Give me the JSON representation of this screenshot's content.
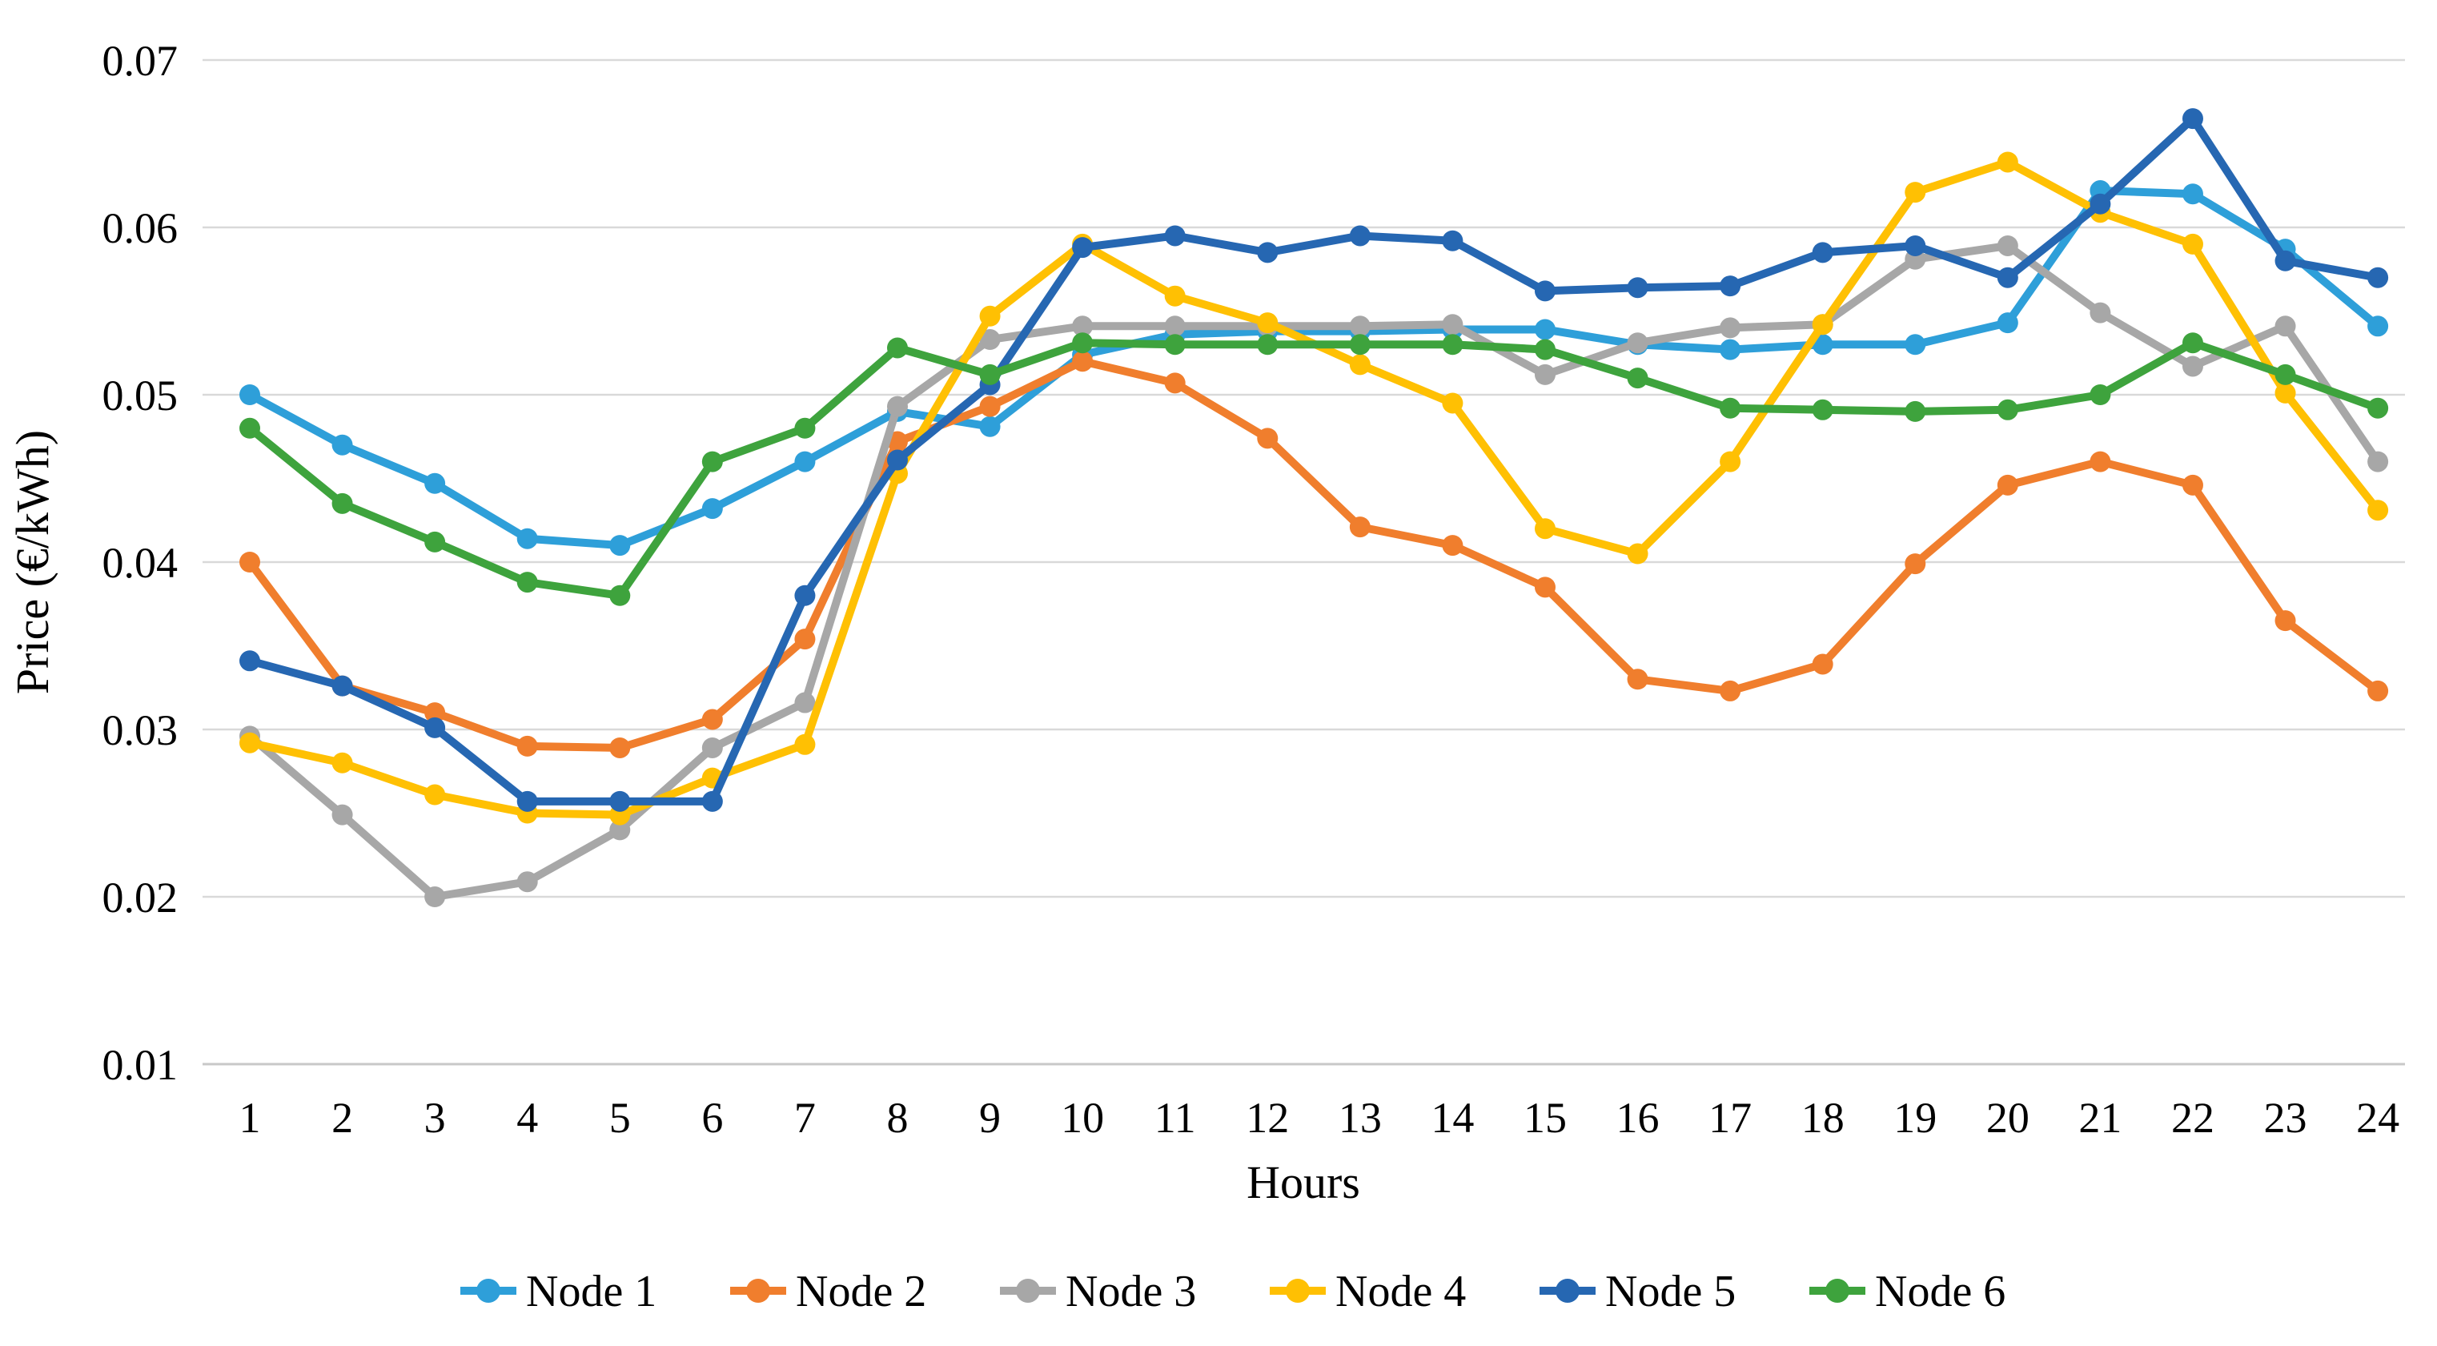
{
  "figure": {
    "background_color": "#FFFFFF",
    "grid_color": "#D9D9D9",
    "baseline_color": "#C8C8C8",
    "text_color": "#000000"
  },
  "chart_data": {
    "type": "line",
    "title": "",
    "xlabel": "Hours",
    "ylabel": "Price (€/kWh)",
    "x": [
      1,
      2,
      3,
      4,
      5,
      6,
      7,
      8,
      9,
      10,
      11,
      12,
      13,
      14,
      15,
      16,
      17,
      18,
      19,
      20,
      21,
      22,
      23,
      24
    ],
    "ylim": [
      0.01,
      0.07
    ],
    "yticks": [
      0.07,
      0.06,
      0.05,
      0.04,
      0.03,
      0.02,
      0.01
    ],
    "ytick_labels": [
      "0.07",
      "0.06",
      "0.05",
      "0.04",
      "0.03",
      "0.02",
      "0.01"
    ],
    "grid": "horizontal",
    "legend_position": "bottom-center",
    "marker": "circle",
    "series": [
      {
        "name": "Node 1",
        "color": "#2E9FD9",
        "values": [
          0.05,
          0.047,
          0.0447,
          0.0414,
          0.041,
          0.0432,
          0.046,
          0.049,
          0.0481,
          0.0524,
          0.0536,
          0.0538,
          0.0538,
          0.0539,
          0.0539,
          0.053,
          0.0527,
          0.053,
          0.053,
          0.0543,
          0.0622,
          0.062,
          0.0587,
          0.0541
        ]
      },
      {
        "name": "Node 2",
        "color": "#F07E2D",
        "values": [
          0.04,
          0.0326,
          0.031,
          0.029,
          0.0289,
          0.0306,
          0.0354,
          0.0472,
          0.0493,
          0.052,
          0.0507,
          0.0474,
          0.0421,
          0.041,
          0.0385,
          0.033,
          0.0323,
          0.0339,
          0.0399,
          0.0446,
          0.046,
          0.0446,
          0.0365,
          0.0323
        ]
      },
      {
        "name": "Node 3",
        "color": "#A7A7A7",
        "values": [
          0.0296,
          0.0249,
          0.02,
          0.0209,
          0.024,
          0.0289,
          0.0316,
          0.0493,
          0.0533,
          0.0541,
          0.0541,
          0.0541,
          0.0541,
          0.0542,
          0.0512,
          0.0531,
          0.054,
          0.0542,
          0.0581,
          0.0589,
          0.0549,
          0.0517,
          0.0541,
          0.046
        ]
      },
      {
        "name": "Node 4",
        "color": "#FFC003",
        "values": [
          0.0292,
          0.028,
          0.0261,
          0.025,
          0.0249,
          0.0271,
          0.0291,
          0.0453,
          0.0547,
          0.059,
          0.0559,
          0.0543,
          0.0518,
          0.0495,
          0.042,
          0.0405,
          0.046,
          0.0542,
          0.0621,
          0.0639,
          0.0609,
          0.059,
          0.0501,
          0.0431
        ]
      },
      {
        "name": "Node 5",
        "color": "#2667B2",
        "values": [
          0.0341,
          0.0326,
          0.0301,
          0.0257,
          0.0257,
          0.0257,
          0.038,
          0.0461,
          0.0506,
          0.0588,
          0.0595,
          0.0585,
          0.0595,
          0.0592,
          0.0562,
          0.0564,
          0.0565,
          0.0585,
          0.0589,
          0.057,
          0.0614,
          0.0665,
          0.058,
          0.057
        ]
      },
      {
        "name": "Node 6",
        "color": "#3EA33D",
        "values": [
          0.048,
          0.0435,
          0.0412,
          0.0388,
          0.038,
          0.046,
          0.048,
          0.0528,
          0.0512,
          0.0531,
          0.053,
          0.053,
          0.053,
          0.053,
          0.0527,
          0.051,
          0.0492,
          0.0491,
          0.049,
          0.0491,
          0.05,
          0.0531,
          0.0512,
          0.0492
        ]
      }
    ]
  }
}
